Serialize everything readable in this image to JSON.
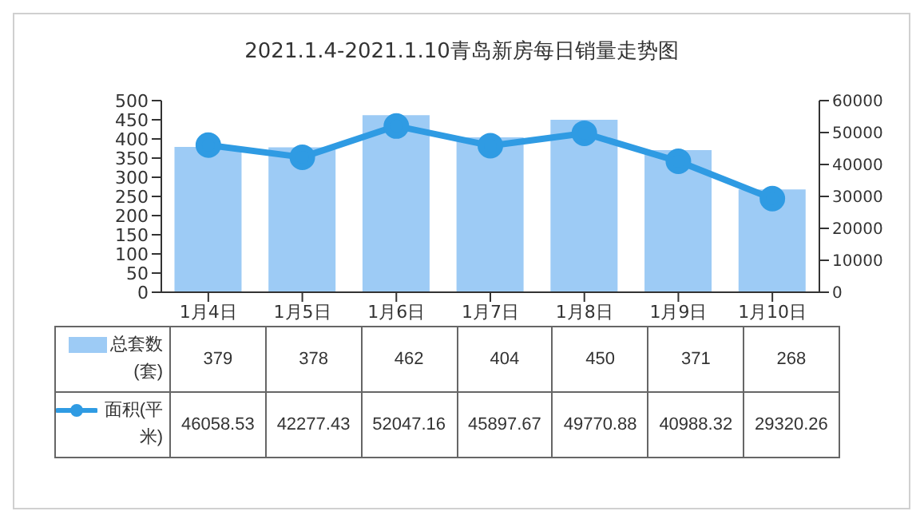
{
  "chart_data": {
    "type": "bar",
    "title": "2021.1.4-2021.1.10青岛新房每日销量走势图",
    "categories": [
      "1月4日",
      "1月5日",
      "1月6日",
      "1月7日",
      "1月8日",
      "1月9日",
      "1月10日"
    ],
    "series": [
      {
        "name": "总套数(套)",
        "color": "#9dcbf5",
        "values": [
          379,
          378,
          462,
          404,
          450,
          371,
          268
        ]
      },
      {
        "name": "面积(平米)",
        "type": "line",
        "axis": "y2",
        "color": "#2f9be3",
        "values": [
          46058.53,
          42277.43,
          52047.16,
          45897.67,
          49770.88,
          40988.32,
          29320.26
        ]
      }
    ],
    "ylim": [
      0,
      500
    ],
    "yticks": [
      0,
      50,
      100,
      150,
      200,
      250,
      300,
      350,
      400,
      450,
      500
    ],
    "y2lim": [
      0,
      60000
    ],
    "y2ticks": [
      0,
      10000,
      20000,
      30000,
      40000,
      50000,
      60000
    ],
    "data_labels": true,
    "legend": "bottom left",
    "marker": "circle",
    "line_style": "solid",
    "grid": false
  }
}
